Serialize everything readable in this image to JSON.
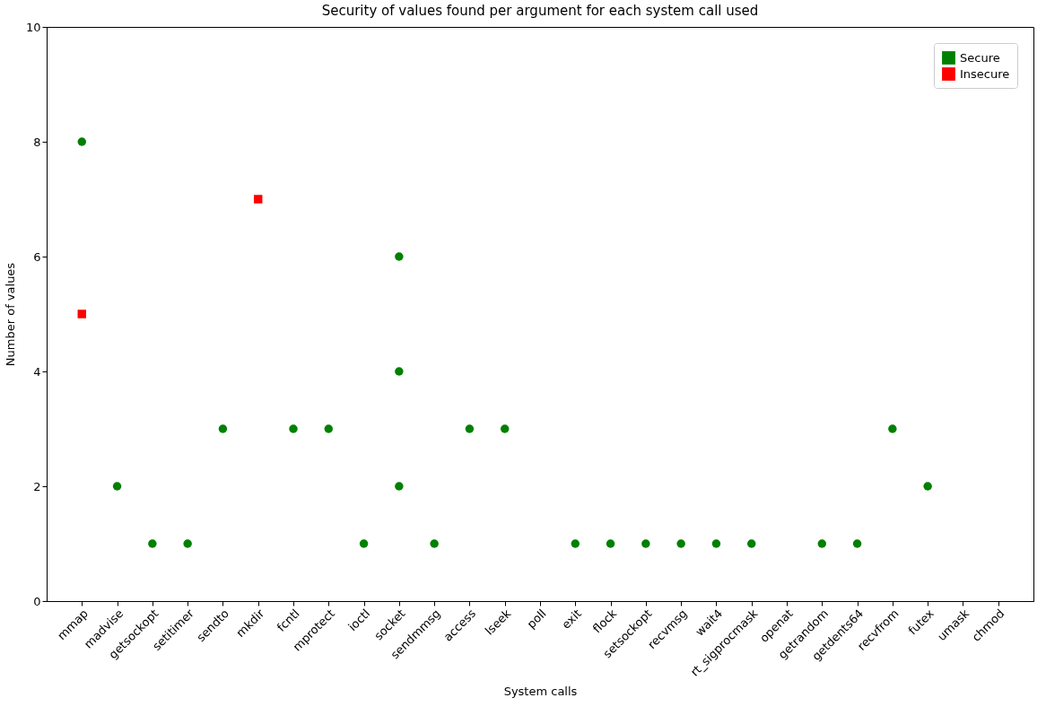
{
  "chart_data": {
    "type": "scatter",
    "title": "Security of values found per argument for each system call used",
    "xlabel": "System calls",
    "ylabel": "Number of values",
    "categories": [
      "mmap",
      "madvise",
      "getsockopt",
      "setitimer",
      "sendto",
      "mkdir",
      "fcntl",
      "mprotect",
      "ioctl",
      "socket",
      "sendmmsg",
      "access",
      "lseek",
      "poll",
      "exit",
      "flock",
      "setsockopt",
      "recvmsg",
      "wait4",
      "rt_sigprocmask",
      "openat",
      "getrandom",
      "getdents64",
      "recvfrom",
      "futex",
      "umask",
      "chmod"
    ],
    "series": [
      {
        "name": "Secure",
        "color": "#008000",
        "marker": "circle",
        "x": [
          "mmap",
          "madvise",
          "getsockopt",
          "setitimer",
          "sendto",
          "fcntl",
          "mprotect",
          "ioctl",
          "socket",
          "socket",
          "socket",
          "sendmmsg",
          "access",
          "lseek",
          "exit",
          "flock",
          "setsockopt",
          "recvmsg",
          "wait4",
          "rt_sigprocmask",
          "getrandom",
          "getdents64",
          "recvfrom",
          "futex"
        ],
        "values": [
          8,
          2,
          1,
          1,
          3,
          3,
          3,
          1,
          6,
          4,
          2,
          1,
          3,
          3,
          1,
          1,
          1,
          1,
          1,
          1,
          1,
          1,
          3,
          2
        ]
      },
      {
        "name": "Insecure",
        "color": "#ff0000",
        "marker": "square",
        "x": [
          "mmap",
          "mkdir"
        ],
        "values": [
          5,
          7
        ]
      }
    ],
    "ylim": [
      0,
      10
    ],
    "yticks": [
      0,
      2,
      4,
      6,
      8,
      10
    ],
    "legend": "top right"
  }
}
